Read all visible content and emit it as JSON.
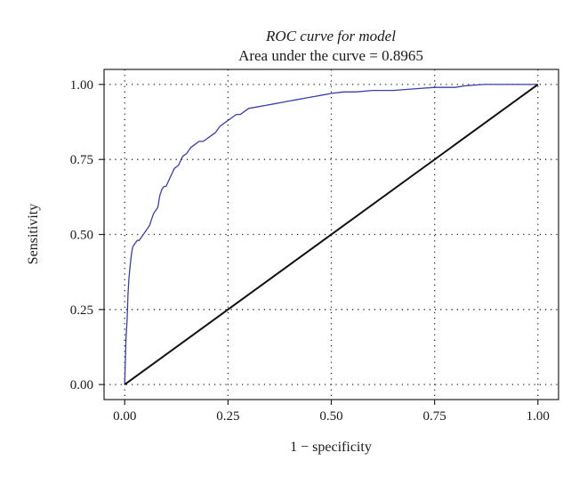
{
  "chart_data": {
    "type": "line",
    "title": "ROC curve for model",
    "subtitle": "Area under the curve = 0.8965",
    "xlabel": "1 − specificity",
    "ylabel": "Sensitivity",
    "xlim": [
      -0.05,
      1.05
    ],
    "ylim": [
      -0.05,
      1.05
    ],
    "xticks": [
      "0.00",
      "0.25",
      "0.50",
      "0.75",
      "1.00"
    ],
    "yticks": [
      "0.00",
      "0.25",
      "0.50",
      "0.75",
      "1.00"
    ],
    "grid": true,
    "series": [
      {
        "color": "#3a3fa8",
        "x": [
          0.0,
          0.003,
          0.006,
          0.008,
          0.01,
          0.012,
          0.015,
          0.018,
          0.02,
          0.025,
          0.03,
          0.035,
          0.04,
          0.045,
          0.05,
          0.055,
          0.06,
          0.065,
          0.07,
          0.075,
          0.08,
          0.085,
          0.09,
          0.095,
          0.1,
          0.11,
          0.12,
          0.13,
          0.14,
          0.15,
          0.16,
          0.17,
          0.18,
          0.19,
          0.2,
          0.21,
          0.22,
          0.23,
          0.24,
          0.25,
          0.26,
          0.27,
          0.28,
          0.29,
          0.3,
          0.32,
          0.34,
          0.36,
          0.38,
          0.4,
          0.42,
          0.44,
          0.46,
          0.48,
          0.5,
          0.53,
          0.56,
          0.6,
          0.65,
          0.7,
          0.75,
          0.8,
          0.82,
          0.85,
          0.87,
          0.9,
          0.95,
          1.0
        ],
        "y": [
          0.0,
          0.15,
          0.22,
          0.3,
          0.35,
          0.38,
          0.42,
          0.45,
          0.46,
          0.47,
          0.48,
          0.48,
          0.49,
          0.5,
          0.51,
          0.52,
          0.53,
          0.55,
          0.57,
          0.58,
          0.59,
          0.63,
          0.65,
          0.66,
          0.66,
          0.69,
          0.72,
          0.73,
          0.76,
          0.77,
          0.79,
          0.8,
          0.81,
          0.81,
          0.82,
          0.83,
          0.84,
          0.86,
          0.87,
          0.88,
          0.89,
          0.9,
          0.9,
          0.91,
          0.92,
          0.925,
          0.93,
          0.935,
          0.94,
          0.945,
          0.95,
          0.955,
          0.96,
          0.965,
          0.97,
          0.975,
          0.975,
          0.98,
          0.98,
          0.985,
          0.99,
          0.99,
          0.995,
          0.998,
          1.0,
          1.0,
          1.0,
          1.0
        ]
      },
      {
        "color": "#111111",
        "x": [
          0.0,
          1.0
        ],
        "y": [
          0.0,
          1.0
        ]
      }
    ]
  }
}
